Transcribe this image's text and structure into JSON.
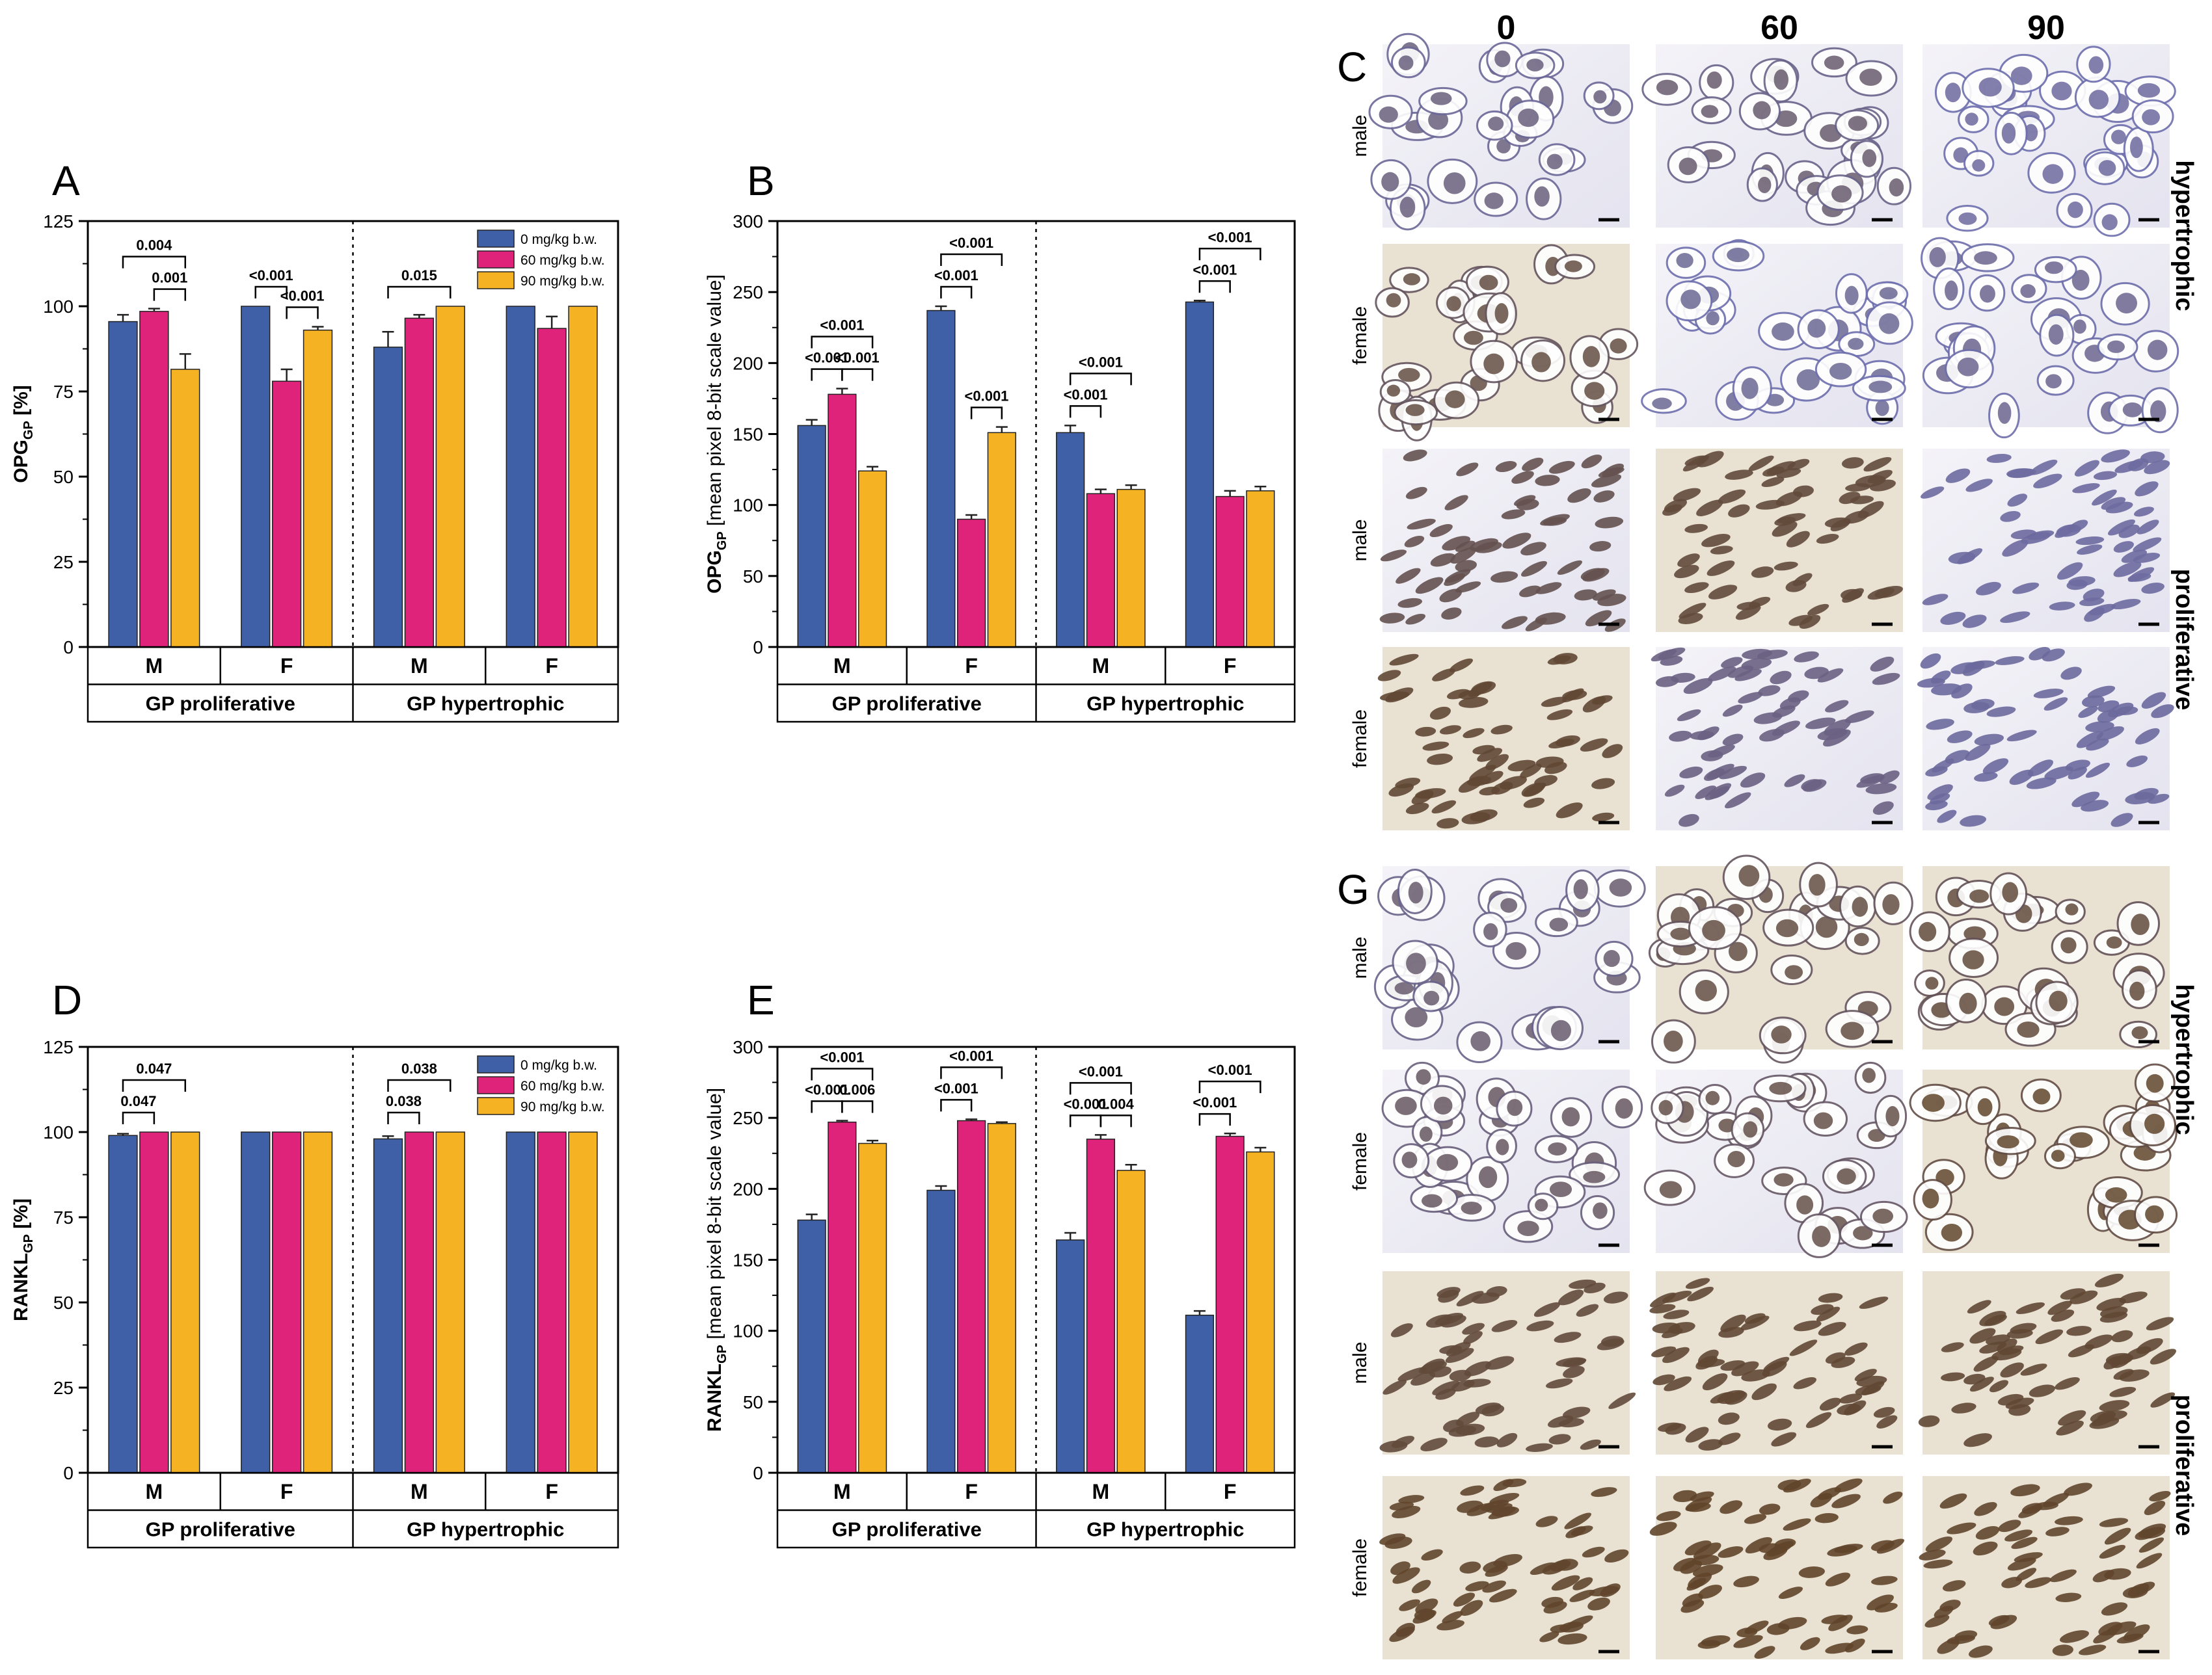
{
  "colors": {
    "series": [
      "#3f5fa6",
      "#e0237a",
      "#f5b324"
    ],
    "axis": "#000000",
    "tissue_stain_brown": "#7a5a32",
    "tissue_stain_blue": "#6e6fae",
    "tissue_background": "#ecebf3"
  },
  "panel_letters": [
    "A",
    "B",
    "C",
    "D",
    "E",
    "G"
  ],
  "charts": [
    {
      "id": "A",
      "ylabel_main": "OPG",
      "ylabel_sub": "GP",
      "ylabel_rest": " [%]",
      "ylim": [
        0,
        125
      ],
      "yticks": [
        "0",
        "25",
        "50",
        "75",
        "100",
        "125"
      ],
      "legend": [
        "0 mg/kg b.w.",
        "60 mg/kg b.w.",
        "90 mg/kg b.w."
      ],
      "sex_labels": [
        "M",
        "F",
        "M",
        "F"
      ],
      "zones": [
        "GP proliferative",
        "GP hypertrophic"
      ]
    },
    {
      "id": "B",
      "ylabel_main": "OPG",
      "ylabel_sub": "GP",
      "ylabel_rest": " [mean pixel 8-bit scale value]",
      "ylim": [
        0,
        300
      ],
      "yticks": [
        "0",
        "50",
        "100",
        "150",
        "200",
        "250",
        "300"
      ],
      "legend": [],
      "sex_labels": [
        "M",
        "F",
        "M",
        "F"
      ],
      "zones": [
        "GP proliferative",
        "GP hypertrophic"
      ]
    },
    {
      "id": "D",
      "ylabel_main": "RANKL",
      "ylabel_sub": "GP",
      "ylabel_rest": " [%]",
      "ylim": [
        0,
        125
      ],
      "yticks": [
        "0",
        "25",
        "50",
        "75",
        "100",
        "125"
      ],
      "legend": [
        "0 mg/kg b.w.",
        "60 mg/kg b.w.",
        "90 mg/kg b.w."
      ],
      "sex_labels": [
        "M",
        "F",
        "M",
        "F"
      ],
      "zones": [
        "GP proliferative",
        "GP hypertrophic"
      ]
    },
    {
      "id": "E",
      "ylabel_main": "RANKL",
      "ylabel_sub": "GP",
      "ylabel_rest": " [mean pixel 8-bit scale value]",
      "ylim": [
        0,
        300
      ],
      "yticks": [
        "0",
        "50",
        "100",
        "150",
        "200",
        "250",
        "300"
      ],
      "legend": [],
      "sex_labels": [
        "M",
        "F",
        "M",
        "F"
      ],
      "zones": [
        "GP proliferative",
        "GP hypertrophic"
      ]
    }
  ],
  "chart_data": [
    {
      "type": "bar",
      "panel": "A",
      "ylabel": "OPG_GP [%]",
      "ylim": [
        0,
        125
      ],
      "categories": [
        "GP proliferative M",
        "GP proliferative F",
        "GP hypertrophic M",
        "GP hypertrophic F"
      ],
      "series": [
        {
          "name": "0 mg/kg b.w.",
          "values": [
            95.5,
            100,
            88,
            100
          ],
          "errors": [
            2,
            0,
            4.5,
            0
          ]
        },
        {
          "name": "60 mg/kg b.w.",
          "values": [
            98.5,
            78,
            96.5,
            93.5
          ],
          "errors": [
            0.8,
            3.5,
            1,
            3.5
          ]
        },
        {
          "name": "90 mg/kg b.w.",
          "values": [
            81.5,
            93,
            100,
            100
          ],
          "errors": [
            4.5,
            1,
            0,
            0
          ]
        }
      ],
      "significance": [
        {
          "group": 0,
          "from": 0,
          "to": 2,
          "label": "0.004",
          "level": 2
        },
        {
          "group": 0,
          "from": 1,
          "to": 2,
          "label": "0.001",
          "level": 1
        },
        {
          "group": 1,
          "from": 0,
          "to": 1,
          "label": "<0.001",
          "level": 1
        },
        {
          "group": 1,
          "from": 1,
          "to": 2,
          "label": "<0.001",
          "level": 1
        },
        {
          "group": 2,
          "from": 0,
          "to": 2,
          "label": "0.015",
          "level": 1
        }
      ]
    },
    {
      "type": "bar",
      "panel": "B",
      "ylabel": "OPG_GP [mean pixel 8-bit scale value]",
      "ylim": [
        0,
        300
      ],
      "categories": [
        "GP proliferative M",
        "GP proliferative F",
        "GP hypertrophic M",
        "GP hypertrophic F"
      ],
      "series": [
        {
          "name": "0 mg/kg b.w.",
          "values": [
            156,
            237,
            151,
            243
          ],
          "errors": [
            4,
            3,
            5,
            1
          ]
        },
        {
          "name": "60 mg/kg b.w.",
          "values": [
            178,
            90,
            108,
            106
          ],
          "errors": [
            4,
            3,
            3,
            4
          ]
        },
        {
          "name": "90 mg/kg b.w.",
          "values": [
            124,
            151,
            111,
            110
          ],
          "errors": [
            3,
            4,
            3,
            3
          ]
        }
      ],
      "significance": [
        {
          "group": 0,
          "from": 0,
          "to": 1,
          "label": "<0.001",
          "level": 1
        },
        {
          "group": 0,
          "from": 1,
          "to": 2,
          "label": "<0.001",
          "level": 1
        },
        {
          "group": 0,
          "from": 0,
          "to": 2,
          "label": "<0.001",
          "level": 2
        },
        {
          "group": 1,
          "from": 0,
          "to": 1,
          "label": "<0.001",
          "level": 1
        },
        {
          "group": 1,
          "from": 1,
          "to": 2,
          "label": "<0.001",
          "level": 1
        },
        {
          "group": 1,
          "from": 0,
          "to": 2,
          "label": "<0.001",
          "level": 2
        },
        {
          "group": 2,
          "from": 0,
          "to": 1,
          "label": "<0.001",
          "level": 1
        },
        {
          "group": 2,
          "from": 0,
          "to": 2,
          "label": "<0.001",
          "level": 2
        },
        {
          "group": 3,
          "from": 0,
          "to": 1,
          "label": "<0.001",
          "level": 1
        },
        {
          "group": 3,
          "from": 0,
          "to": 2,
          "label": "<0.001",
          "level": 2
        }
      ]
    },
    {
      "type": "bar",
      "panel": "D",
      "ylabel": "RANKL_GP [%]",
      "ylim": [
        0,
        125
      ],
      "categories": [
        "GP proliferative M",
        "GP proliferative F",
        "GP hypertrophic M",
        "GP hypertrophic F"
      ],
      "series": [
        {
          "name": "0 mg/kg b.w.",
          "values": [
            99,
            100,
            98,
            100
          ],
          "errors": [
            0.5,
            0,
            0.8,
            0
          ]
        },
        {
          "name": "60 mg/kg b.w.",
          "values": [
            100,
            100,
            100,
            100
          ],
          "errors": [
            0,
            0,
            0,
            0
          ]
        },
        {
          "name": "90 mg/kg b.w.",
          "values": [
            100,
            100,
            100,
            100
          ],
          "errors": [
            0,
            0,
            0,
            0
          ]
        }
      ],
      "significance": [
        {
          "group": 0,
          "from": 0,
          "to": 1,
          "label": "0.047",
          "level": 1
        },
        {
          "group": 0,
          "from": 0,
          "to": 2,
          "label": "0.047",
          "level": 2
        },
        {
          "group": 2,
          "from": 0,
          "to": 1,
          "label": "0.038",
          "level": 1
        },
        {
          "group": 2,
          "from": 0,
          "to": 2,
          "label": "0.038",
          "level": 2
        }
      ]
    },
    {
      "type": "bar",
      "panel": "E",
      "ylabel": "RANKL_GP [mean pixel 8-bit scale value]",
      "ylim": [
        0,
        300
      ],
      "categories": [
        "GP proliferative M",
        "GP proliferative F",
        "GP hypertrophic M",
        "GP hypertrophic F"
      ],
      "series": [
        {
          "name": "0 mg/kg b.w.",
          "values": [
            178,
            199,
            164,
            111
          ],
          "errors": [
            4,
            3,
            5,
            3
          ]
        },
        {
          "name": "60 mg/kg b.w.",
          "values": [
            247,
            248,
            235,
            237
          ],
          "errors": [
            1,
            1,
            3,
            2
          ]
        },
        {
          "name": "90 mg/kg b.w.",
          "values": [
            232,
            246,
            213,
            226
          ],
          "errors": [
            2,
            1,
            4,
            3
          ]
        }
      ],
      "significance": [
        {
          "group": 0,
          "from": 0,
          "to": 1,
          "label": "<0.001",
          "level": 1
        },
        {
          "group": 0,
          "from": 1,
          "to": 2,
          "label": "0.006",
          "level": 1
        },
        {
          "group": 0,
          "from": 0,
          "to": 2,
          "label": "<0.001",
          "level": 2
        },
        {
          "group": 1,
          "from": 0,
          "to": 1,
          "label": "<0.001",
          "level": 1
        },
        {
          "group": 1,
          "from": 0,
          "to": 2,
          "label": "<0.001",
          "level": 2
        },
        {
          "group": 2,
          "from": 0,
          "to": 1,
          "label": "<0.001",
          "level": 1
        },
        {
          "group": 2,
          "from": 1,
          "to": 2,
          "label": "0.004",
          "level": 1
        },
        {
          "group": 2,
          "from": 0,
          "to": 2,
          "label": "<0.001",
          "level": 2
        },
        {
          "group": 3,
          "from": 0,
          "to": 1,
          "label": "<0.001",
          "level": 1
        },
        {
          "group": 3,
          "from": 0,
          "to": 2,
          "label": "<0.001",
          "level": 2
        }
      ]
    }
  ],
  "micrographs": {
    "column_headers": [
      "0",
      "60",
      "90"
    ],
    "row_labels": [
      "male",
      "female",
      "male",
      "female"
    ],
    "zone_labels": [
      "hypertrophic",
      "proliferative"
    ],
    "panels": [
      {
        "letter": "C",
        "stain_level": [
          [
            0.35,
            0.45,
            0.12
          ],
          [
            0.75,
            0.18,
            0.22
          ],
          [
            0.65,
            0.8,
            0.1
          ],
          [
            0.85,
            0.3,
            0.12
          ]
        ]
      },
      {
        "letter": "G",
        "stain_level": [
          [
            0.45,
            0.75,
            0.8
          ],
          [
            0.55,
            0.7,
            0.92
          ],
          [
            0.8,
            0.85,
            0.85
          ],
          [
            0.9,
            0.92,
            0.9
          ]
        ]
      }
    ]
  }
}
